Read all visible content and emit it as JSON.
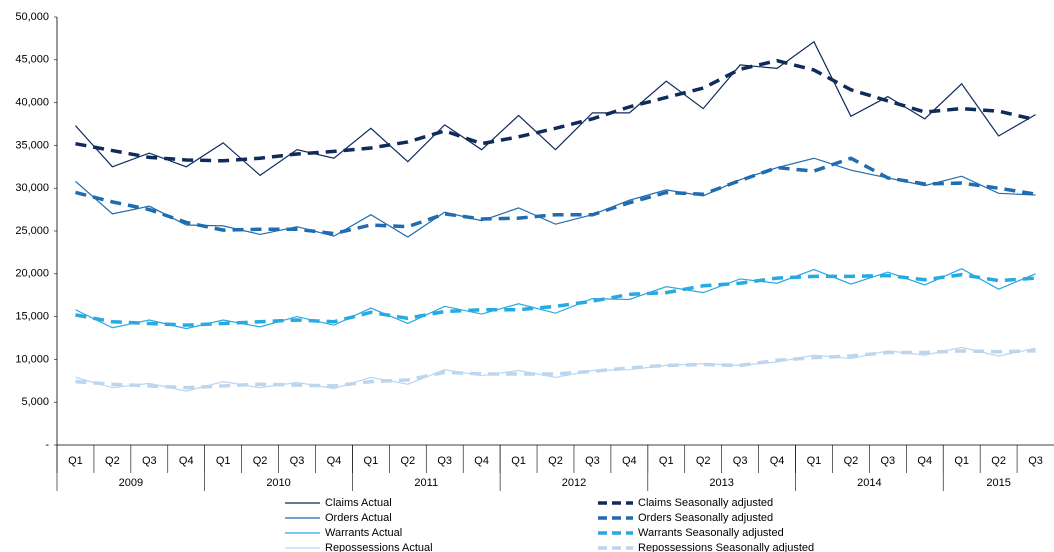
{
  "chart_data": {
    "type": "line",
    "categories": [
      "Q1",
      "Q2",
      "Q3",
      "Q4",
      "Q1",
      "Q2",
      "Q3",
      "Q4",
      "Q1",
      "Q2",
      "Q3",
      "Q4",
      "Q1",
      "Q2",
      "Q3",
      "Q4",
      "Q1",
      "Q2",
      "Q3",
      "Q4",
      "Q1",
      "Q2",
      "Q3",
      "Q4",
      "Q1",
      "Q2",
      "Q3"
    ],
    "years": [
      "2009",
      "2010",
      "2011",
      "2012",
      "2013",
      "2014",
      "2015"
    ],
    "ylim": [
      0,
      50000
    ],
    "yticks": [
      {
        "value": 0,
        "label": "-"
      },
      {
        "value": 5000,
        "label": "5,000"
      },
      {
        "value": 10000,
        "label": "10,000"
      },
      {
        "value": 15000,
        "label": "15,000"
      },
      {
        "value": 20000,
        "label": "20,000"
      },
      {
        "value": 25000,
        "label": "25,000"
      },
      {
        "value": 30000,
        "label": "30,000"
      },
      {
        "value": 35000,
        "label": "35,000"
      },
      {
        "value": 40000,
        "label": "40,000"
      },
      {
        "value": 45000,
        "label": "45,000"
      },
      {
        "value": 50000,
        "label": "50,000"
      }
    ],
    "grid": false,
    "legend": "bottom",
    "series": [
      {
        "name": "Claims Actual",
        "color": "#0f2b5b",
        "style": "solid",
        "values": [
          37300,
          32500,
          34100,
          32500,
          35300,
          31500,
          34500,
          33500,
          37000,
          33100,
          37400,
          34500,
          38500,
          34500,
          38800,
          38800,
          42500,
          39300,
          44400,
          44000,
          47100,
          38400,
          40700,
          38100,
          42200,
          36100,
          38600
        ]
      },
      {
        "name": "Orders Actual",
        "color": "#1f6cb0",
        "style": "solid",
        "values": [
          30800,
          27000,
          27900,
          25700,
          25600,
          24600,
          25500,
          24400,
          26900,
          24300,
          27200,
          26200,
          27700,
          25800,
          26900,
          28600,
          29800,
          29100,
          31000,
          32400,
          33500,
          32100,
          31200,
          30300,
          31400,
          29400,
          29200
        ]
      },
      {
        "name": "Warrants Actual",
        "color": "#27a9e1",
        "style": "solid",
        "values": [
          15800,
          13700,
          14600,
          13600,
          14600,
          13800,
          15000,
          14000,
          16000,
          14200,
          16200,
          15300,
          16500,
          15400,
          17100,
          17000,
          18500,
          17800,
          19400,
          18900,
          20500,
          18800,
          20200,
          18700,
          20600,
          18200,
          20000
        ]
      },
      {
        "name": "Repossessions Actual",
        "color": "#bcd6ee",
        "style": "solid",
        "values": [
          7900,
          6700,
          7200,
          6300,
          7400,
          6700,
          7300,
          6600,
          7900,
          7100,
          8800,
          8100,
          8700,
          7900,
          8700,
          8800,
          9300,
          9500,
          9300,
          9700,
          10500,
          10100,
          11000,
          10500,
          11400,
          10400,
          11300
        ]
      },
      {
        "name": "Claims Seasonally adjusted",
        "color": "#0f2b5b",
        "style": "dashed",
        "values": [
          35200,
          34400,
          33600,
          33300,
          33200,
          33500,
          34000,
          34300,
          34700,
          35400,
          36700,
          35200,
          36000,
          37000,
          38100,
          39500,
          40600,
          41700,
          43900,
          44900,
          43800,
          41500,
          40200,
          38900,
          39300,
          39000,
          38000
        ]
      },
      {
        "name": "Orders Seasonally adjusted",
        "color": "#1f6cb0",
        "style": "dashed",
        "values": [
          29500,
          28400,
          27500,
          26000,
          25100,
          25200,
          25200,
          24700,
          25700,
          25500,
          27000,
          26400,
          26500,
          26900,
          26900,
          28300,
          29500,
          29300,
          30900,
          32400,
          32000,
          33500,
          31200,
          30500,
          30600,
          30000,
          29300
        ]
      },
      {
        "name": "Warrants Seasonally adjusted",
        "color": "#27a9e1",
        "style": "dashed",
        "values": [
          15200,
          14400,
          14200,
          14000,
          14200,
          14400,
          14600,
          14400,
          15500,
          14800,
          15600,
          15800,
          15800,
          16200,
          16800,
          17600,
          17800,
          18600,
          18900,
          19500,
          19700,
          19700,
          19800,
          19300,
          19900,
          19200,
          19500
        ]
      },
      {
        "name": "Repossessions Seasonally adjusted",
        "color": "#bcd6ee",
        "style": "dashed",
        "values": [
          7400,
          7100,
          6900,
          6700,
          6900,
          7100,
          7000,
          6900,
          7400,
          7600,
          8500,
          8300,
          8300,
          8300,
          8600,
          9000,
          9300,
          9400,
          9300,
          9900,
          10200,
          10400,
          10800,
          10800,
          11000,
          10900,
          11000
        ]
      }
    ]
  }
}
